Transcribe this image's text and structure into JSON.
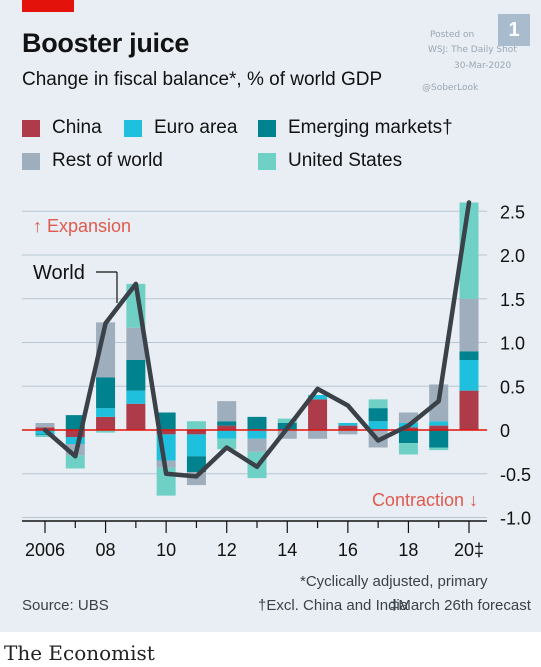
{
  "header": {
    "title": "Booster juice",
    "subtitle": "Change in fiscal balance*, % of world GDP",
    "badge": "1",
    "accent_color": "#e3120b"
  },
  "watermark": {
    "line1": "Posted on",
    "line2": "WSJ: The Daily Shot",
    "line3": "30-Mar-2020",
    "line4": "@SoberLook"
  },
  "legend": [
    {
      "label": "China",
      "color": "#ad3b4a"
    },
    {
      "label": "Euro area",
      "color": "#1fc0de"
    },
    {
      "label": "Emerging markets†",
      "color": "#00838f"
    },
    {
      "label": "Rest of world",
      "color": "#9eaebc"
    },
    {
      "label": "United States",
      "color": "#6fd1c6"
    }
  ],
  "annotations": {
    "expansion": "↑ Expansion",
    "contraction": "Contraction ↓",
    "world": "World"
  },
  "chart_data": {
    "type": "bar",
    "stacked": true,
    "categories": [
      "2006",
      "2007",
      "2008",
      "2009",
      "2010",
      "2011",
      "2012",
      "2013",
      "2014",
      "2015",
      "2016",
      "2017",
      "2018",
      "2019",
      "2020‡"
    ],
    "x_tick_labels": [
      "2006",
      "08",
      "10",
      "12",
      "14",
      "16",
      "18",
      "20‡"
    ],
    "y_ticks": [
      "2.5",
      "2.0",
      "1.5",
      "1.0",
      "0.5",
      "0",
      "-0.5",
      "-1.0"
    ],
    "ylim": [
      -1.0,
      2.6
    ],
    "series": [
      {
        "name": "China",
        "color": "#ad3b4a",
        "values": [
          0.03,
          -0.08,
          0.15,
          0.3,
          -0.05,
          -0.05,
          0.05,
          0.0,
          0.0,
          0.35,
          0.05,
          0.0,
          0.03,
          0.05,
          0.45
        ]
      },
      {
        "name": "Euro area",
        "color": "#1fc0de",
        "values": [
          -0.05,
          -0.08,
          0.1,
          0.15,
          -0.3,
          -0.25,
          -0.1,
          -0.1,
          0.0,
          0.05,
          0.03,
          0.1,
          0.05,
          0.05,
          0.35
        ]
      },
      {
        "name": "Emerging markets†",
        "color": "#00838f",
        "values": [
          -0.01,
          0.17,
          0.35,
          0.35,
          0.2,
          -0.18,
          0.05,
          0.15,
          0.08,
          0.0,
          0.0,
          0.15,
          -0.15,
          -0.2,
          0.1
        ]
      },
      {
        "name": "Rest of world",
        "color": "#9eaebc",
        "values": [
          0.05,
          -0.13,
          0.63,
          0.37,
          -0.08,
          -0.15,
          0.23,
          -0.15,
          -0.1,
          -0.1,
          -0.05,
          -0.2,
          0.12,
          0.42,
          0.6
        ]
      },
      {
        "name": "United States",
        "color": "#6fd1c6",
        "values": [
          -0.02,
          -0.15,
          -0.03,
          0.5,
          -0.32,
          0.1,
          -0.12,
          -0.3,
          0.05,
          0.0,
          0.0,
          0.1,
          -0.13,
          -0.03,
          1.1
        ]
      }
    ],
    "line": {
      "name": "World",
      "color": "#3a4148",
      "values": [
        0.0,
        -0.3,
        1.22,
        1.67,
        -0.5,
        -0.53,
        -0.2,
        -0.42,
        0.02,
        0.47,
        0.28,
        -0.12,
        0.05,
        0.33,
        2.6
      ]
    }
  },
  "footer": {
    "footnote1": "*Cyclically adjusted, primary",
    "source": "Source: UBS",
    "footnote2": "†Excl. China and India",
    "footnote3": "‡March 26th forecast",
    "brand": "The Economist"
  }
}
